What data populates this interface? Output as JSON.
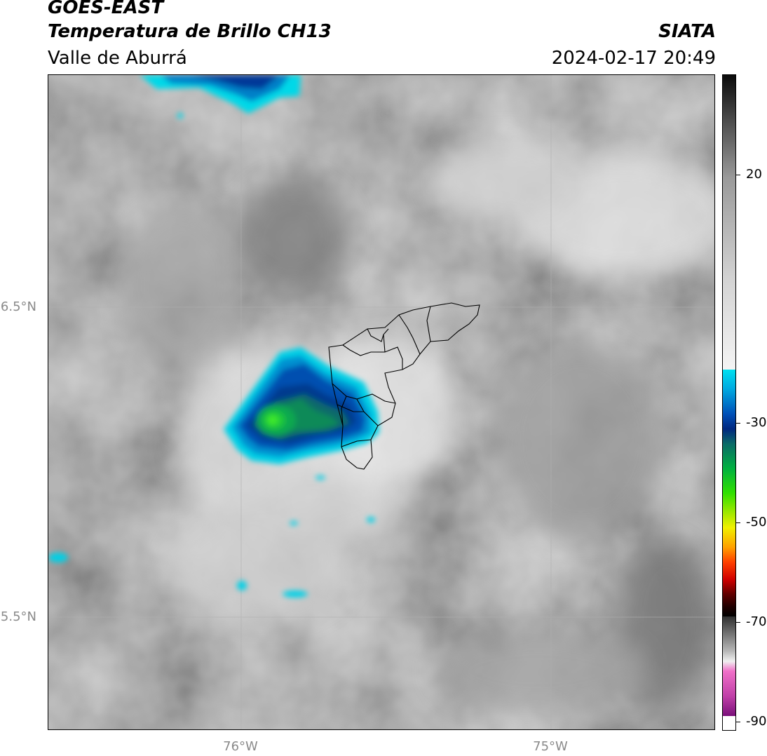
{
  "header": {
    "title_line1": "GOES-EAST",
    "title_line2": "Temperatura de Brillo CH13",
    "subtitle": "Valle de Aburrá",
    "source": "SIATA",
    "datetime": "2024-02-17 20:49"
  },
  "map": {
    "lat_labels": [
      "6.5°N",
      "5.5°N"
    ],
    "lon_labels": [
      "76°W",
      "75°W"
    ]
  },
  "colorbar": {
    "ticks": [
      "20",
      "-30",
      "-50",
      "-70",
      "-90"
    ]
  }
}
